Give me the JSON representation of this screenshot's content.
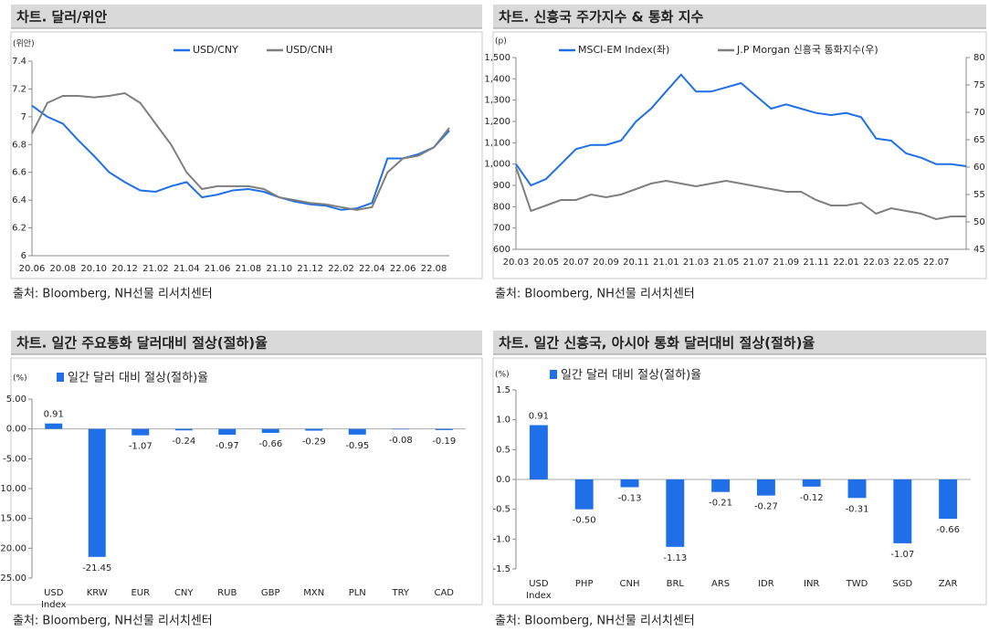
{
  "chart_data": [
    {
      "type": "line",
      "title": "차트. 달러/위안",
      "y_label": "(위안)",
      "source": "출처: Bloomberg, NH선물 리서치센터",
      "x": [
        "20.06",
        null,
        "20.08",
        null,
        "20.10",
        null,
        "20.12",
        null,
        "21.02",
        null,
        "21.04",
        null,
        "21.06",
        null,
        "21.08",
        null,
        "21.10",
        null,
        "21.12",
        null,
        "22.02",
        null,
        "22.04",
        null,
        "22.06",
        null,
        "22.08",
        null
      ],
      "series": [
        {
          "name": "USD/CNY",
          "color": "#1f6fe8",
          "values": [
            7.08,
            7.0,
            6.95,
            6.83,
            6.72,
            6.6,
            6.53,
            6.47,
            6.46,
            6.5,
            6.53,
            6.42,
            6.44,
            6.47,
            6.48,
            6.46,
            6.42,
            6.39,
            6.37,
            6.36,
            6.33,
            6.34,
            6.38,
            6.7,
            6.7,
            6.73,
            6.78,
            6.9
          ]
        },
        {
          "name": "USD/CNH",
          "color": "#7f7f7f",
          "values": [
            6.88,
            7.1,
            7.15,
            7.15,
            7.14,
            7.15,
            7.17,
            7.1,
            6.95,
            6.8,
            6.6,
            6.48,
            6.5,
            6.5,
            6.5,
            6.48,
            6.42,
            6.4,
            6.38,
            6.37,
            6.35,
            6.33,
            6.35,
            6.6,
            6.7,
            6.72,
            6.78,
            6.92
          ]
        }
      ],
      "ylim": [
        6,
        7.4
      ],
      "yticks": [
        6,
        6.2,
        6.4,
        6.6,
        6.8,
        7,
        7.2,
        7.4
      ]
    },
    {
      "type": "line",
      "title": "차트. 신흥국 주가지수 & 통화 지수",
      "y_label": "(p)",
      "source": "출처: Bloomberg, NH선물 리서치센터",
      "x": [
        "20.03",
        null,
        "20.05",
        null,
        "20.07",
        null,
        "20.09",
        null,
        "20.11",
        null,
        "21.01",
        null,
        "21.03",
        null,
        "21.05",
        null,
        "21.07",
        null,
        "21.09",
        null,
        "21.11",
        null,
        "22.01",
        null,
        "22.03",
        null,
        "22.05",
        null,
        "22.07",
        null,
        null
      ],
      "series": [
        {
          "name": "MSCI-EM Index(좌)",
          "color": "#1f6fe8",
          "values": [
            1000,
            900,
            930,
            1000,
            1070,
            1090,
            1090,
            1110,
            1200,
            1260,
            1340,
            1420,
            1340,
            1340,
            1360,
            1380,
            1320,
            1260,
            1280,
            1260,
            1240,
            1230,
            1240,
            1220,
            1120,
            1110,
            1050,
            1030,
            1000,
            1000,
            990
          ]
        },
        {
          "name": "J.P Morgan 신흥국 통화지수(우)",
          "color": "#7f7f7f",
          "axis": "y2",
          "values": [
            60,
            52,
            53,
            54,
            54,
            55,
            54.5,
            55,
            56,
            57,
            57.5,
            57,
            56.5,
            57,
            57.5,
            57,
            56.5,
            56,
            55.5,
            55.5,
            54,
            53,
            53,
            53.5,
            51.5,
            52.5,
            52,
            51.5,
            50.5,
            51,
            51
          ]
        }
      ],
      "ylim": [
        600,
        1500
      ],
      "yticks": [
        600,
        700,
        800,
        900,
        {
          "value": 1000,
          "label": "1,000"
        },
        {
          "value": 1100,
          "label": "1,100"
        },
        {
          "value": 1200,
          "label": "1,200"
        },
        {
          "value": 1300,
          "label": "1,300"
        },
        {
          "value": 1400,
          "label": "1,400"
        },
        {
          "value": 1500,
          "label": "1,500"
        }
      ],
      "y2lim": [
        45,
        80
      ],
      "y2ticks": [
        45,
        50,
        55,
        60,
        65,
        70,
        75,
        80
      ]
    },
    {
      "type": "bar",
      "title": "차트. 일간 주요통화 달러대비 절상(절하)율",
      "y_label": "(%)",
      "source": "출처: Bloomberg, NH선물 리서치센터",
      "series": [
        {
          "name": "일간 달러 대비 절상(절하)율",
          "color": "#1f6fe8",
          "values": [
            0.91,
            -21.45,
            -1.07,
            -0.24,
            -0.97,
            -0.66,
            -0.29,
            -0.95,
            -0.08,
            -0.19
          ],
          "value_labels": [
            "0.91",
            "-21.45",
            "-1.07",
            "-0.24",
            "-0.97",
            "-0.66",
            "-0.29",
            "-0.95",
            "-0.08",
            "-0.19"
          ]
        }
      ],
      "categories": [
        "USD Index",
        "KRW",
        "EUR",
        "CNY",
        "RUB",
        "GBP",
        "MXN",
        "PLN",
        "TRY",
        "CAD"
      ],
      "ylim": [
        -25,
        5
      ],
      "yticks": [
        {
          "value": 5,
          "label": "5.00"
        },
        {
          "value": 0,
          "label": "0.00"
        },
        {
          "value": -5,
          "label": "-5.00"
        },
        {
          "value": -10,
          "label": "-10.00"
        },
        {
          "value": -15,
          "label": "-15.00"
        },
        {
          "value": -20,
          "label": "-20.00"
        },
        {
          "value": -25,
          "label": "-25.00"
        }
      ]
    },
    {
      "type": "bar",
      "title": "차트. 일간 신흥국, 아시아 통화 달러대비 절상(절하)율",
      "y_label": "(%)",
      "source": "출처: Bloomberg, NH선물 리서치센터",
      "series": [
        {
          "name": "일간 달러 대비 절상(절하)율",
          "color": "#1f6fe8",
          "values": [
            0.91,
            -0.5,
            -0.13,
            -1.13,
            -0.21,
            -0.27,
            -0.12,
            -0.31,
            -1.07,
            -0.66
          ],
          "value_labels": [
            "0.91",
            "-0.50",
            "-0.13",
            "-1.13",
            "-0.21",
            "-0.27",
            "-0.12",
            "-0.31",
            "-1.07",
            "-0.66"
          ]
        }
      ],
      "categories": [
        "USD Index",
        "PHP",
        "CNH",
        "BRL",
        "ARS",
        "IDR",
        "INR",
        "TWD",
        "SGD",
        "ZAR"
      ],
      "ylim": [
        -1.5,
        1.5
      ],
      "yticks": [
        1.5,
        {
          "value": 1,
          "label": "1.0"
        },
        0.5,
        {
          "value": 0,
          "label": "0.0"
        },
        -0.5,
        {
          "value": -1,
          "label": "-1.0"
        },
        -1.5
      ]
    }
  ]
}
